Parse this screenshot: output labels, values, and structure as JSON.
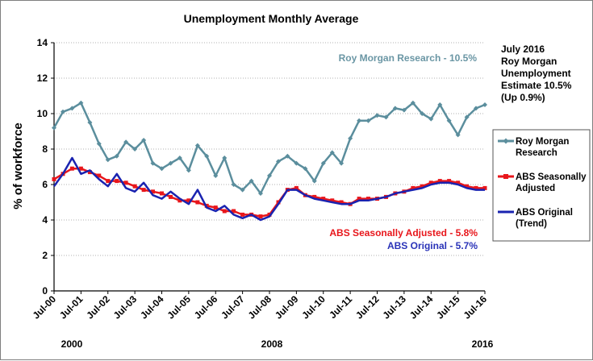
{
  "chart_data": {
    "type": "line",
    "title": "Unemployment Monthly Average",
    "xlabel": "",
    "ylabel": "% of workforce",
    "ylim": [
      0,
      14
    ],
    "yticks": [
      "0",
      "2",
      "4",
      "6",
      "8",
      "10",
      "12",
      "14"
    ],
    "xlim": [
      2000.5,
      2016.5
    ],
    "categories": [
      "Jul-00",
      "Jul-01",
      "Jul-02",
      "Jul-03",
      "Jul-04",
      "Jul-05",
      "Jul-06",
      "Jul-07",
      "Jul-08",
      "Jul-09",
      "Jul-10",
      "Jul-11",
      "Jul-12",
      "Jul-13",
      "Jul-14",
      "Jul-15",
      "Jul-16"
    ],
    "year_labels": [
      "2000",
      "2008",
      "2016"
    ],
    "grid": true,
    "colors": {
      "rm": "#5b8e9d",
      "abs_sa": "#e8161b",
      "abs_orig": "#1a23b0",
      "annot_rm": "#6a96a4",
      "annot_sa": "#e8161b",
      "annot_orig": "#2a33b8"
    },
    "series": [
      {
        "name": "Roy Morgan Research",
        "key": "rm",
        "x": [
          2000.5,
          2000.83,
          2001.17,
          2001.5,
          2001.83,
          2002.17,
          2002.5,
          2002.83,
          2003.17,
          2003.5,
          2003.83,
          2004.17,
          2004.5,
          2004.83,
          2005.17,
          2005.5,
          2005.83,
          2006.17,
          2006.5,
          2006.83,
          2007.17,
          2007.5,
          2007.83,
          2008.17,
          2008.5,
          2008.83,
          2009.17,
          2009.5,
          2009.83,
          2010.17,
          2010.5,
          2010.83,
          2011.17,
          2011.5,
          2011.83,
          2012.17,
          2012.5,
          2012.83,
          2013.17,
          2013.5,
          2013.83,
          2014.17,
          2014.5,
          2014.83,
          2015.17,
          2015.5,
          2015.83,
          2016.17,
          2016.5
        ],
        "values": [
          9.2,
          10.1,
          10.3,
          10.6,
          9.5,
          8.3,
          7.4,
          7.6,
          8.4,
          8.0,
          8.5,
          7.2,
          6.9,
          7.2,
          7.5,
          6.8,
          8.2,
          7.6,
          6.5,
          7.5,
          6.0,
          5.7,
          6.2,
          5.5,
          6.5,
          7.3,
          7.6,
          7.2,
          6.9,
          6.2,
          7.2,
          7.8,
          7.2,
          8.6,
          9.6,
          9.6,
          9.9,
          9.8,
          10.3,
          10.2,
          10.6,
          10.0,
          9.7,
          10.5,
          9.6,
          8.8,
          9.8,
          10.3,
          10.5
        ]
      },
      {
        "name": "ABS Seasonally Adjusted",
        "key": "abs_sa",
        "x": [
          2000.5,
          2000.83,
          2001.17,
          2001.5,
          2001.83,
          2002.17,
          2002.5,
          2002.83,
          2003.17,
          2003.5,
          2003.83,
          2004.17,
          2004.5,
          2004.83,
          2005.17,
          2005.5,
          2005.83,
          2006.17,
          2006.5,
          2006.83,
          2007.17,
          2007.5,
          2007.83,
          2008.17,
          2008.5,
          2008.83,
          2009.17,
          2009.5,
          2009.83,
          2010.17,
          2010.5,
          2010.83,
          2011.17,
          2011.5,
          2011.83,
          2012.17,
          2012.5,
          2012.83,
          2013.17,
          2013.5,
          2013.83,
          2014.17,
          2014.5,
          2014.83,
          2015.17,
          2015.5,
          2015.83,
          2016.17,
          2016.5
        ],
        "values": [
          6.3,
          6.6,
          6.9,
          6.9,
          6.7,
          6.5,
          6.2,
          6.2,
          6.1,
          5.9,
          5.7,
          5.6,
          5.5,
          5.3,
          5.1,
          5.1,
          5.0,
          4.8,
          4.7,
          4.5,
          4.5,
          4.3,
          4.3,
          4.2,
          4.3,
          5.0,
          5.7,
          5.8,
          5.4,
          5.3,
          5.2,
          5.1,
          5.0,
          4.9,
          5.2,
          5.2,
          5.2,
          5.3,
          5.5,
          5.6,
          5.8,
          5.9,
          6.1,
          6.2,
          6.2,
          6.1,
          5.9,
          5.8,
          5.8
        ]
      },
      {
        "name": "ABS Original (Trend)",
        "key": "abs_orig",
        "x": [
          2000.5,
          2000.83,
          2001.17,
          2001.5,
          2001.83,
          2002.17,
          2002.5,
          2002.83,
          2003.17,
          2003.5,
          2003.83,
          2004.17,
          2004.5,
          2004.83,
          2005.17,
          2005.5,
          2005.83,
          2006.17,
          2006.5,
          2006.83,
          2007.17,
          2007.5,
          2007.83,
          2008.17,
          2008.5,
          2008.83,
          2009.17,
          2009.5,
          2009.83,
          2010.17,
          2010.5,
          2010.83,
          2011.17,
          2011.5,
          2011.83,
          2012.17,
          2012.5,
          2012.83,
          2013.17,
          2013.5,
          2013.83,
          2014.17,
          2014.5,
          2014.83,
          2015.17,
          2015.5,
          2015.83,
          2016.17,
          2016.5
        ],
        "values": [
          5.9,
          6.6,
          7.5,
          6.6,
          6.8,
          6.3,
          5.9,
          6.6,
          5.8,
          5.6,
          6.1,
          5.4,
          5.2,
          5.6,
          5.2,
          4.9,
          5.7,
          4.7,
          4.5,
          4.8,
          4.3,
          4.1,
          4.3,
          4.0,
          4.2,
          4.9,
          5.7,
          5.7,
          5.4,
          5.2,
          5.1,
          5.0,
          4.9,
          4.9,
          5.1,
          5.1,
          5.2,
          5.3,
          5.5,
          5.6,
          5.7,
          5.8,
          6.0,
          6.1,
          6.1,
          6.0,
          5.8,
          5.7,
          5.7
        ]
      }
    ],
    "annotations": {
      "rm_latest": "Roy Morgan Research - 10.5%",
      "abs_sa_latest": "ABS Seasonally Adjusted - 5.8%",
      "abs_orig_latest": "ABS Original - 5.7%",
      "side_note": [
        "July 2016",
        "Roy Morgan",
        "Unemployment",
        "Estimate 10.5%",
        "(Up 0.9%)"
      ]
    },
    "legend": {
      "position": "right",
      "entries": [
        {
          "key": "rm",
          "lines": [
            "Roy Morgan",
            "Research"
          ]
        },
        {
          "key": "abs_sa",
          "lines": [
            "ABS Seasonally",
            "Adjusted"
          ]
        },
        {
          "key": "abs_orig",
          "lines": [
            "ABS Original",
            "(Trend)"
          ]
        }
      ]
    }
  }
}
